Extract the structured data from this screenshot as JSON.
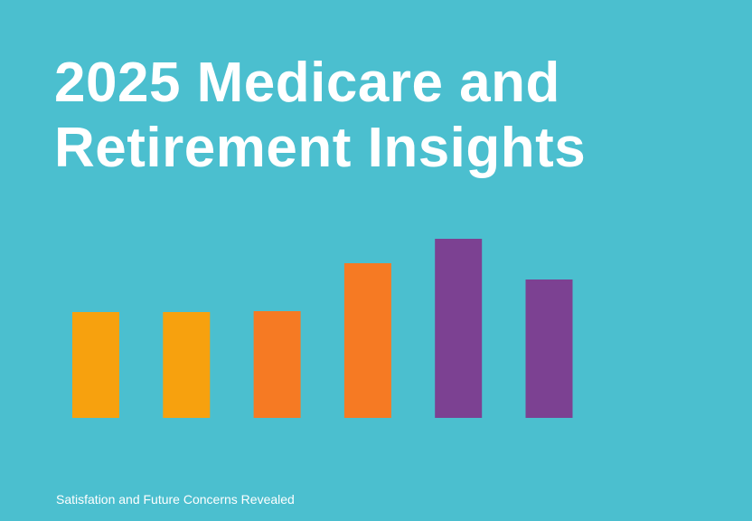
{
  "chart_data": {
    "type": "bar",
    "title": "2025 Medicare and Retirement Insights",
    "subtitle": "Satisfation and Future Concerns Revealed",
    "categories": [
      null,
      null,
      null,
      null,
      null,
      null
    ],
    "values": [
      117,
      117,
      118,
      171,
      198,
      153
    ],
    "colors": [
      "#f7a10e",
      "#f7a10e",
      "#f67a23",
      "#f67a23",
      "#7c4192",
      "#7c4192"
    ]
  }
}
